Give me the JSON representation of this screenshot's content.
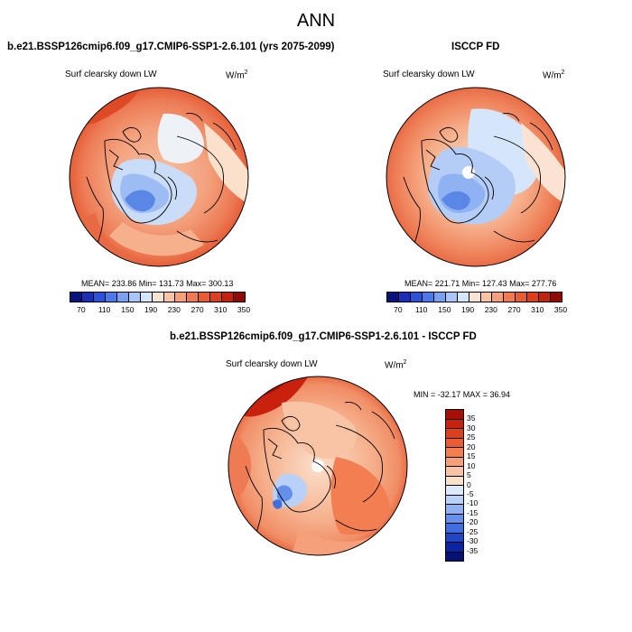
{
  "main_title": "ANN",
  "top_left": {
    "case_title": "b.e21.BSSP126cmip6.f09_g17.CMIP6-SSP1-2.6.101 (yrs 2075-2099)",
    "variable": "Surf clearsky down LW",
    "units_base": "W/m",
    "units_exp": "2",
    "stats": "MEAN= 233.86  Min= 131.73  Max= 300.13"
  },
  "top_right": {
    "case_title": "ISCCP FD",
    "variable": "Surf clearsky down LW",
    "units_base": "W/m",
    "units_exp": "2",
    "stats": "MEAN= 221.71  Min= 127.43  Max= 277.76"
  },
  "bottom": {
    "case_title": "b.e21.BSSP126cmip6.f09_g17.CMIP6-SSP1-2.6.101 - ISCCP FD",
    "variable": "Surf clearsky down LW",
    "units_base": "W/m",
    "units_exp": "2",
    "stats": "MIN = -32.17 MAX =  36.94"
  },
  "abs_colorbar": {
    "colors": [
      "#08137a",
      "#1a2fb4",
      "#2c52d8",
      "#4c78ea",
      "#7aa0f2",
      "#a9c6f8",
      "#d5e6fb",
      "#fbe3d3",
      "#f9c3a5",
      "#f5a07a",
      "#ef7b55",
      "#e65c35",
      "#d9401f",
      "#c0230f",
      "#8f0a05"
    ],
    "tick_labels": [
      "70",
      "110",
      "150",
      "190",
      "230",
      "270",
      "310",
      "350"
    ]
  },
  "diff_colorbar": {
    "colors": [
      "#a50f06",
      "#c8220f",
      "#dd3e1d",
      "#ea5d34",
      "#f27e52",
      "#f5a07a",
      "#f9c4a6",
      "#fbe0cc",
      "#dce9fb",
      "#b9d1f7",
      "#8eb2f2",
      "#6590ea",
      "#3f6edf",
      "#2045c7",
      "#0c24a6",
      "#071374"
    ],
    "tick_labels": [
      "35",
      "30",
      "25",
      "20",
      "15",
      "10",
      "5",
      "0",
      "-5",
      "-10",
      "-15",
      "-20",
      "-25",
      "-30",
      "-35"
    ]
  }
}
